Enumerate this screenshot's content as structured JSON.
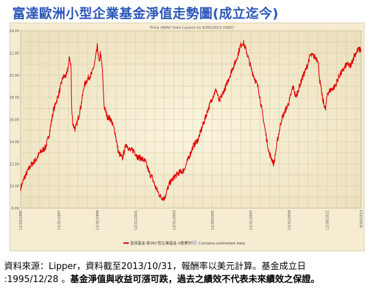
{
  "title": "富達歐洲小型企業基金淨值走勢圖(成立迄今)",
  "chart_data": {
    "type": "line",
    "title": "Price (NAV) from Launch to 9/30/2013 (USD)",
    "xlabel": "",
    "ylabel": "",
    "ylim": [
      8,
      24
    ],
    "yticks": [
      "8.00",
      "10.00",
      "12.00",
      "14.00",
      "16.00",
      "18.00",
      "20.00",
      "22.00",
      "24.00"
    ],
    "x_ticks": [
      {
        "t": 1995.99,
        "label": "12/29/1995"
      },
      {
        "t": 1997.99,
        "label": "12/31/1997"
      },
      {
        "t": 1999.99,
        "label": "12/31/1999"
      },
      {
        "t": 2001.99,
        "label": "12/31/2001"
      },
      {
        "t": 2003.99,
        "label": "12/31/2003"
      },
      {
        "t": 2005.99,
        "label": "12/30/2005"
      },
      {
        "t": 2007.99,
        "label": "12/31/2007"
      },
      {
        "t": 2009.99,
        "label": "12/31/2009"
      },
      {
        "t": 2011.99,
        "label": "12/30/2011"
      },
      {
        "t": 2013.75,
        "label": "9/30/2013"
      }
    ],
    "grid": true,
    "legend_position": "bottom",
    "series": [
      {
        "name": "富達基金-歐洲小型企業基金 A股累計",
        "color": "#e00000",
        "x": [
          1995.99,
          1996.2,
          1996.5,
          1996.8,
          1997.0,
          1997.3,
          1997.5,
          1997.7,
          1998.0,
          1998.2,
          1998.4,
          1998.55,
          1998.62,
          1998.66,
          1998.72,
          1998.85,
          1998.98,
          1999.15,
          1999.3,
          1999.5,
          1999.7,
          1999.85,
          2000.0,
          2000.1,
          2000.15,
          2000.25,
          2000.35,
          2000.5,
          2000.7,
          2000.9,
          2001.1,
          2001.3,
          2001.5,
          2001.7,
          2001.9,
          2002.1,
          2002.3,
          2002.5,
          2002.7,
          2002.85,
          2003.0,
          2003.15,
          2003.3,
          2003.5,
          2003.75,
          2004.0,
          2004.25,
          2004.5,
          2004.75,
          2005.0,
          2005.25,
          2005.5,
          2005.75,
          2006.0,
          2006.2,
          2006.35,
          2006.5,
          2006.75,
          2007.0,
          2007.25,
          2007.45,
          2007.6,
          2007.8,
          2008.0,
          2008.2,
          2008.4,
          2008.6,
          2008.8,
          2008.95,
          2009.1,
          2009.2,
          2009.4,
          2009.6,
          2009.8,
          2010.0,
          2010.2,
          2010.35,
          2010.5,
          2010.7,
          2010.9,
          2011.1,
          2011.3,
          2011.5,
          2011.6,
          2011.75,
          2011.9,
          2012.0,
          2012.2,
          2012.4,
          2012.6,
          2012.8,
          2013.0,
          2013.2,
          2013.4,
          2013.6,
          2013.75
        ],
        "y": [
          9.8,
          10.8,
          11.8,
          12.4,
          13.0,
          13.5,
          14.8,
          16.8,
          18.4,
          19.8,
          20.0,
          21.6,
          20.8,
          16.8,
          15.6,
          15.1,
          16.0,
          17.3,
          19.0,
          19.7,
          20.1,
          21.0,
          22.6,
          21.0,
          22.0,
          20.7,
          17.2,
          16.3,
          16.0,
          15.0,
          13.0,
          12.5,
          13.8,
          13.2,
          13.2,
          12.6,
          12.5,
          12.2,
          11.2,
          10.8,
          10.0,
          9.5,
          9.0,
          8.9,
          10.2,
          10.8,
          11.2,
          11.4,
          12.5,
          13.6,
          14.2,
          15.5,
          16.8,
          18.0,
          18.7,
          17.6,
          18.2,
          19.2,
          20.4,
          21.4,
          22.6,
          23.0,
          22.0,
          20.7,
          19.7,
          18.8,
          16.6,
          14.5,
          13.0,
          12.4,
          12.0,
          14.2,
          16.0,
          16.8,
          17.6,
          19.0,
          18.0,
          18.8,
          19.8,
          20.6,
          21.8,
          21.7,
          21.4,
          19.5,
          17.8,
          16.9,
          18.4,
          18.7,
          19.0,
          19.9,
          20.4,
          21.0,
          20.8,
          21.8,
          22.3,
          22.3
        ]
      },
      {
        "name": "Contains estimated data",
        "color": "#cccccc",
        "x": [],
        "y": []
      }
    ]
  },
  "source_line1": "資料來源：Lipper，資料截至2013/10/31，報酬率以美元計算。基金成立日",
  "source_line2_prefix": ":1995/12/28 。",
  "source_line2_bold": "基金淨值與收益可漲可跌，過去之績效不代表未來績效之保證。"
}
